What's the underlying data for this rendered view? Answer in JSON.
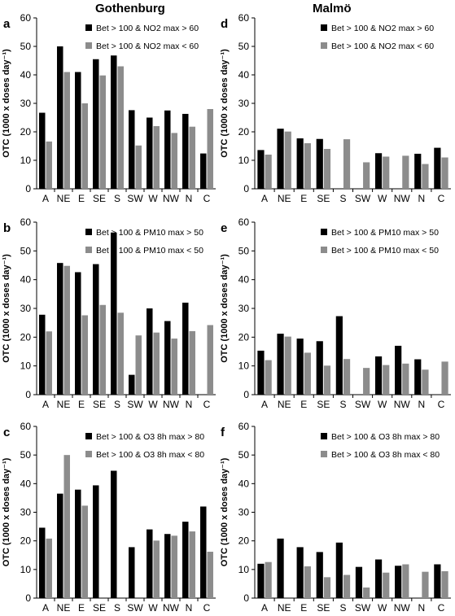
{
  "columns": {
    "left_title": "Gothenburg",
    "right_title": "Malmö"
  },
  "colors": {
    "series_high": "#000000",
    "series_low": "#8c8c8c"
  },
  "chart_data": [
    {
      "panel": "a",
      "type": "bar",
      "city": "Gothenburg",
      "categories": [
        "A",
        "NE",
        "E",
        "SE",
        "S",
        "SW",
        "W",
        "NW",
        "N",
        "C"
      ],
      "ylabel": "OTC (1000 x doses day⁻¹)",
      "ylim": [
        0,
        60
      ],
      "yticks": [
        0,
        10,
        20,
        30,
        40,
        50,
        60
      ],
      "grid": false,
      "legend_position": "top-right",
      "series": [
        {
          "name": "Bet > 100 & NO2 max > 60",
          "values": [
            26.7,
            50,
            41,
            45.5,
            46.8,
            27.6,
            25,
            27.5,
            26.3,
            12.4
          ]
        },
        {
          "name": "Bet > 100 & NO2 max < 60",
          "values": [
            16.6,
            41,
            30,
            39.8,
            43,
            15.2,
            22,
            19.6,
            21.8,
            28
          ]
        }
      ]
    },
    {
      "panel": "d",
      "type": "bar",
      "city": "Malmö",
      "categories": [
        "A",
        "NE",
        "E",
        "SE",
        "S",
        "SW",
        "W",
        "NW",
        "N",
        "C"
      ],
      "ylabel": "OTC (1000 x doses day⁻¹)",
      "ylim": [
        0,
        60
      ],
      "yticks": [
        0,
        10,
        20,
        30,
        40,
        50,
        60
      ],
      "grid": false,
      "legend_position": "top-right",
      "series": [
        {
          "name": "Bet > 100 & NO2 max > 60",
          "values": [
            13.6,
            21.1,
            17.7,
            17.5,
            null,
            null,
            12.5,
            null,
            12.3,
            14.4
          ]
        },
        {
          "name": "Bet > 100 & NO2 max < 60",
          "values": [
            12,
            20.1,
            16,
            14,
            17.4,
            9.3,
            11.3,
            11.6,
            8.7,
            11
          ]
        }
      ]
    },
    {
      "panel": "b",
      "type": "bar",
      "city": "Gothenburg",
      "categories": [
        "A",
        "NE",
        "E",
        "SE",
        "S",
        "SW",
        "W",
        "NW",
        "N",
        "C"
      ],
      "ylabel": "OTC (1000 x doses day⁻¹)",
      "ylim": [
        0,
        60
      ],
      "yticks": [
        0,
        10,
        20,
        30,
        40,
        50,
        60
      ],
      "grid": false,
      "legend_position": "top-right",
      "series": [
        {
          "name": "Bet > 100 & PM10 max > 50",
          "values": [
            27.8,
            45.8,
            42.6,
            45.4,
            56.4,
            6.9,
            30,
            25.6,
            32,
            null
          ]
        },
        {
          "name": "Bet > 100 & PM10 max < 50",
          "values": [
            22,
            44.8,
            27.6,
            31.2,
            28.5,
            20.6,
            21.6,
            19.5,
            22.1,
            24.2
          ]
        }
      ]
    },
    {
      "panel": "e",
      "type": "bar",
      "city": "Malmö",
      "categories": [
        "A",
        "NE",
        "E",
        "SE",
        "S",
        "SW",
        "W",
        "NW",
        "N",
        "C"
      ],
      "ylabel": "OTC (1000 x doses day⁻¹)",
      "ylim": [
        0,
        60
      ],
      "yticks": [
        0,
        10,
        20,
        30,
        40,
        50,
        60
      ],
      "grid": false,
      "legend_position": "top-right",
      "series": [
        {
          "name": "Bet > 100 & PM10 max > 50",
          "values": [
            15.3,
            21.2,
            19.5,
            18.6,
            27.3,
            null,
            13.3,
            17,
            12.3,
            null
          ]
        },
        {
          "name": "Bet > 100 & PM10 max < 50",
          "values": [
            12,
            20.2,
            14.6,
            10.1,
            12.4,
            9.3,
            10.3,
            10.8,
            8.7,
            11.5
          ]
        }
      ]
    },
    {
      "panel": "c",
      "type": "bar",
      "city": "Gothenburg",
      "categories": [
        "A",
        "NE",
        "E",
        "SE",
        "S",
        "SW",
        "W",
        "NW",
        "N",
        "C"
      ],
      "ylabel": "OTC (1000 x doses day⁻¹)",
      "ylim": [
        0,
        60
      ],
      "yticks": [
        0,
        10,
        20,
        30,
        40,
        50,
        60
      ],
      "grid": false,
      "legend_position": "top-right",
      "series": [
        {
          "name": "Bet > 100 & O3 8h max > 80",
          "values": [
            24.6,
            36.5,
            37.9,
            39.4,
            44.5,
            17.8,
            24,
            22.4,
            26.7,
            32
          ]
        },
        {
          "name": "Bet > 100 & O3 8h max < 80",
          "values": [
            20.8,
            50,
            32.3,
            null,
            null,
            null,
            20.1,
            21.8,
            23.3,
            16.2
          ]
        }
      ]
    },
    {
      "panel": "f",
      "type": "bar",
      "city": "Malmö",
      "categories": [
        "A",
        "NE",
        "E",
        "SE",
        "S",
        "SW",
        "W",
        "NW",
        "N",
        "C"
      ],
      "ylabel": "OTC (1000 x doses day⁻¹)",
      "ylim": [
        0,
        60
      ],
      "yticks": [
        0,
        10,
        20,
        30,
        40,
        50,
        60
      ],
      "grid": false,
      "legend_position": "top-right",
      "series": [
        {
          "name": "Bet > 100 & O3 8h max > 80",
          "values": [
            12,
            20.8,
            17.8,
            16.1,
            19.4,
            10.9,
            13.5,
            11.3,
            null,
            11.8
          ]
        },
        {
          "name": "Bet > 100 & O3 8h max < 80",
          "values": [
            12.6,
            null,
            11.1,
            7.3,
            8.1,
            3.7,
            8.9,
            11.8,
            9.2,
            9.4
          ]
        }
      ]
    }
  ]
}
